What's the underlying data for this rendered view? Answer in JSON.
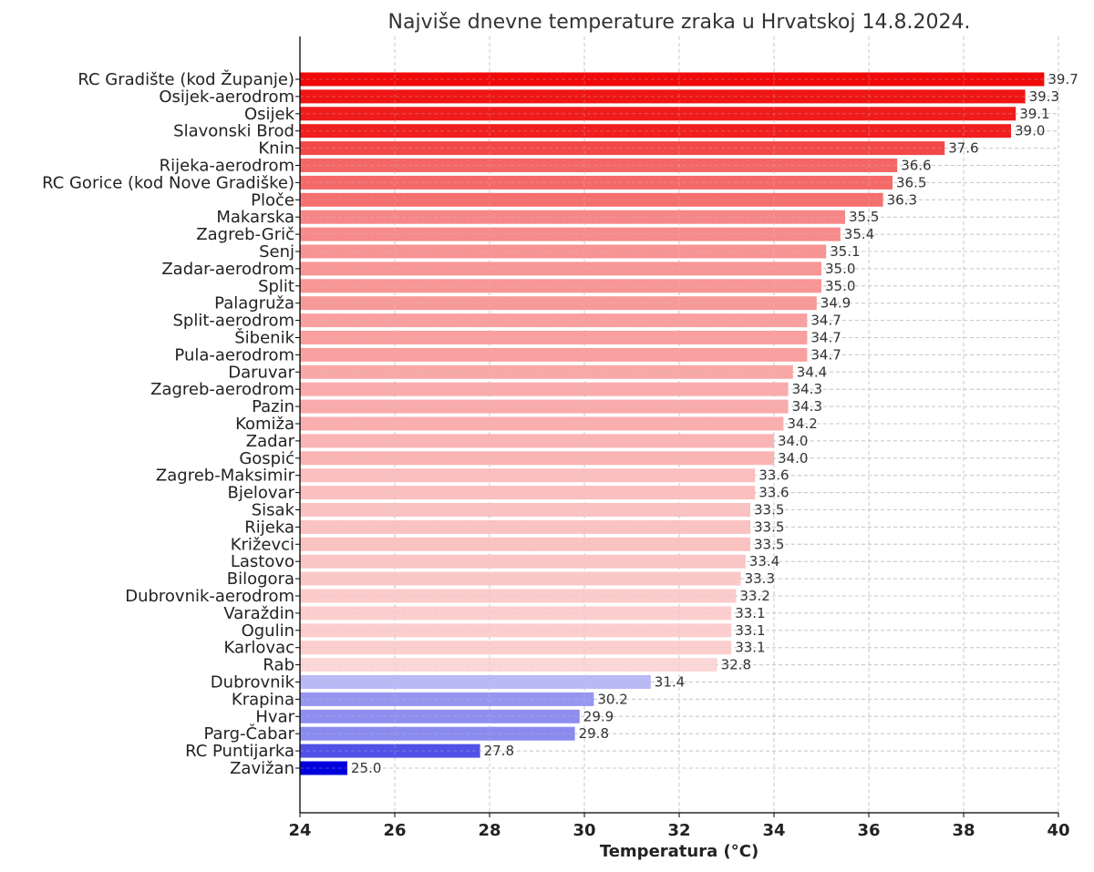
{
  "chart_data": {
    "type": "bar",
    "orientation": "horizontal",
    "title": "Najviše dnevne temperature zraka u Hrvatskoj 14.8.2024.",
    "xlabel": "Temperatura (°C)",
    "ylabel": "",
    "xlim": [
      24,
      40
    ],
    "xticks": [
      24,
      26,
      28,
      30,
      32,
      34,
      36,
      38,
      40
    ],
    "grid": true,
    "categories": [
      "RC Gradište (kod Županje)",
      "Osijek-aerodrom",
      "Osijek",
      "Slavonski Brod",
      "Knin",
      "Rijeka-aerodrom",
      "RC Gorice (kod Nove Gradiške)",
      "Ploče",
      "Makarska",
      "Zagreb-Grič",
      "Senj",
      "Zadar-aerodrom",
      "Split",
      "Palagruža",
      "Split-aerodrom",
      "Šibenik",
      "Pula-aerodrom",
      "Daruvar",
      "Zagreb-aerodrom",
      "Pazin",
      "Komiža",
      "Zadar",
      "Gospić",
      "Zagreb-Maksimir",
      "Bjelovar",
      "Sisak",
      "Rijeka",
      "Križevci",
      "Lastovo",
      "Bilogora",
      "Dubrovnik-aerodrom",
      "Varaždin",
      "Ogulin",
      "Karlovac",
      "Rab",
      "Dubrovnik",
      "Krapina",
      "Hvar",
      "Parg-Čabar",
      "RC Puntijarka",
      "Zavižan"
    ],
    "values": [
      39.7,
      39.3,
      39.1,
      39.0,
      37.6,
      36.6,
      36.5,
      36.3,
      35.5,
      35.4,
      35.1,
      35.0,
      35.0,
      34.9,
      34.7,
      34.7,
      34.7,
      34.4,
      34.3,
      34.3,
      34.2,
      34.0,
      34.0,
      33.6,
      33.6,
      33.5,
      33.5,
      33.5,
      33.4,
      33.3,
      33.2,
      33.1,
      33.1,
      33.1,
      32.8,
      31.4,
      30.2,
      29.9,
      29.8,
      27.8,
      25.0
    ],
    "value_labels": [
      "39.7",
      "39.3",
      "39.1",
      "39.0",
      "37.6",
      "36.6",
      "36.5",
      "36.3",
      "35.5",
      "35.4",
      "35.1",
      "35.0",
      "35.0",
      "34.9",
      "34.7",
      "34.7",
      "34.7",
      "34.4",
      "34.3",
      "34.3",
      "34.2",
      "34.0",
      "34.0",
      "33.6",
      "33.6",
      "33.5",
      "33.5",
      "33.5",
      "33.4",
      "33.3",
      "33.2",
      "33.1",
      "33.1",
      "33.1",
      "32.8",
      "31.4",
      "30.2",
      "29.9",
      "29.8",
      "27.8",
      "25.0"
    ],
    "colormap": {
      "low": "#0000dd",
      "mid": "#ffffff",
      "high": "#ee0000",
      "center": 32.5
    }
  }
}
